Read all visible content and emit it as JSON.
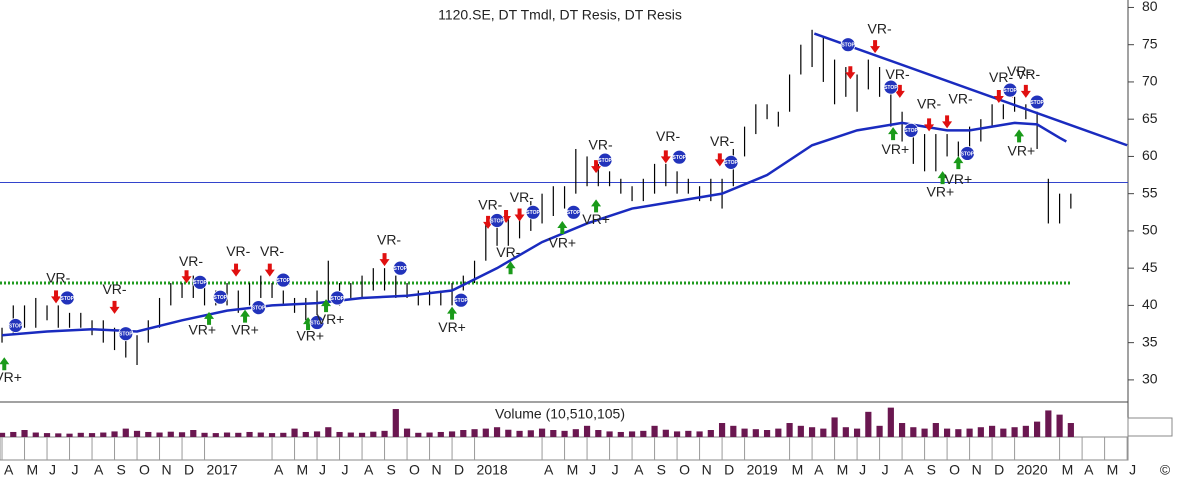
{
  "chart_data": {
    "type": "hl-bar",
    "title": "1120.SE, DT Tmdl, DT Resis, DT Resis",
    "x": [
      0,
      0.5,
      1,
      1.5,
      2,
      2.5,
      3,
      3.5,
      4,
      4.5,
      5,
      5.5,
      6,
      6.5,
      7,
      7.5,
      8,
      8.5,
      9,
      9.5,
      10,
      10.5,
      11,
      11.5,
      12,
      12.5,
      13,
      13.5,
      14,
      14.5,
      15,
      15.5,
      16,
      16.5,
      17,
      17.5,
      18,
      18.5,
      19,
      19.5,
      20,
      20.5,
      21,
      21.5,
      22,
      22.5,
      23,
      23.5,
      24,
      24.5,
      25,
      25.5,
      26,
      26.5,
      27,
      27.5,
      28,
      28.5,
      29,
      29.5,
      30,
      30.5,
      31,
      31.5,
      32,
      32.5,
      33,
      33.5,
      34,
      34.5,
      35,
      35.5,
      36,
      36.5,
      37,
      37.5,
      38,
      38.5,
      39,
      39.5,
      40,
      40.5,
      41,
      41.5,
      42,
      42.5,
      43,
      43.5,
      44,
      44.5,
      45,
      45.5,
      46,
      46.5,
      47,
      47.5
    ],
    "high": [
      37,
      40,
      40,
      41,
      40,
      40,
      39,
      39,
      38,
      38,
      37,
      37,
      36,
      38,
      41,
      43,
      43,
      44,
      43,
      42,
      43,
      42,
      43,
      44,
      43,
      42,
      41,
      41,
      42,
      46,
      43,
      43,
      44,
      45,
      45,
      44,
      43,
      42,
      42,
      42,
      43,
      44,
      46,
      51,
      52,
      52,
      53,
      54,
      55,
      56,
      56,
      61,
      60,
      59,
      58,
      57,
      56,
      57,
      59,
      59,
      58,
      57,
      56,
      57,
      57,
      61,
      64,
      67,
      67,
      66,
      71,
      75,
      77,
      76,
      73,
      72,
      71,
      73,
      72,
      69,
      66,
      64,
      63,
      63,
      63,
      62,
      64,
      65,
      67,
      67,
      68,
      67,
      66,
      57,
      55,
      55
    ],
    "low": [
      35,
      36,
      37,
      37,
      38,
      37,
      37,
      37,
      36,
      35,
      34,
      33,
      32,
      35,
      37,
      40,
      41,
      41,
      40,
      40,
      40,
      39,
      40,
      41,
      41,
      40,
      39,
      38,
      38,
      40,
      40,
      41,
      41,
      42,
      42,
      41,
      41,
      40,
      40,
      40,
      40,
      42,
      43,
      46,
      48,
      48,
      49,
      50,
      51,
      52,
      53,
      55,
      56,
      56,
      56,
      55,
      54,
      54,
      55,
      56,
      55,
      55,
      54,
      54,
      53,
      56,
      60,
      63,
      65,
      64,
      66,
      71,
      72,
      70,
      67,
      68,
      66,
      69,
      68,
      64,
      62,
      59,
      58,
      58,
      60,
      60,
      61,
      62,
      64,
      65,
      66,
      65,
      61,
      51,
      51,
      53
    ],
    "color": "#000000",
    "ma": {
      "x": [
        0,
        2,
        4,
        6,
        8,
        10,
        12,
        14,
        16,
        18,
        20,
        22,
        24,
        26,
        28,
        30,
        32,
        34,
        36,
        38,
        40,
        41,
        42,
        43,
        44,
        45,
        46,
        47,
        47.3
      ],
      "values": [
        36,
        36.5,
        36.8,
        36.5,
        38,
        39.3,
        40,
        40.3,
        41,
        41.3,
        42,
        45,
        48.5,
        51,
        53,
        54,
        55,
        57.5,
        61.5,
        63.5,
        64.5,
        64,
        63.5,
        63.5,
        64,
        64.5,
        64.3,
        62.5,
        62
      ],
      "color": "#1a2bbf"
    },
    "hlines": [
      {
        "y": 56.5,
        "color": "#3344cc",
        "dotted": false
      },
      {
        "y": 43,
        "color": "#1f9a1f",
        "dotted": true,
        "x_end": 47.5
      }
    ],
    "trendline": {
      "x": [
        36.1,
        50
      ],
      "y": [
        76.5,
        61.5
      ],
      "color": "#1a2bbf"
    },
    "annotations": [
      {
        "text": "VR+",
        "x": 0.27,
        "y": 30.2
      },
      {
        "text": "VR-",
        "x": 2.5,
        "y": 43.6
      },
      {
        "text": "VR-",
        "x": 5.0,
        "y": 42
      },
      {
        "text": "VR+",
        "x": 8.9,
        "y": 36.6
      },
      {
        "text": "VR-",
        "x": 8.4,
        "y": 45.8
      },
      {
        "text": "VR-",
        "x": 10.5,
        "y": 47.1
      },
      {
        "text": "VR+",
        "x": 10.8,
        "y": 36.6
      },
      {
        "text": "VR-",
        "x": 12.0,
        "y": 47.1
      },
      {
        "text": "VR+",
        "x": 13.7,
        "y": 35.8
      },
      {
        "text": "VR+",
        "x": 14.6,
        "y": 38
      },
      {
        "text": "VR-",
        "x": 17.2,
        "y": 48.7
      },
      {
        "text": "VR+",
        "x": 20.0,
        "y": 36.9
      },
      {
        "text": "VR-",
        "x": 21.7,
        "y": 53.4
      },
      {
        "text": "VR-",
        "x": 23.1,
        "y": 54.4
      },
      {
        "text": "VR-",
        "x": 22.5,
        "y": 47
      },
      {
        "text": "VR+",
        "x": 24.9,
        "y": 48.3
      },
      {
        "text": "VR+",
        "x": 26.4,
        "y": 51.4
      },
      {
        "text": "VR-",
        "x": 26.6,
        "y": 61.4
      },
      {
        "text": "VR-",
        "x": 29.6,
        "y": 62.6
      },
      {
        "text": "VR-",
        "x": 32.0,
        "y": 61.9
      },
      {
        "text": "VR-",
        "x": 39.0,
        "y": 77
      },
      {
        "text": "VR-",
        "x": 39.8,
        "y": 70.9
      },
      {
        "text": "VR-",
        "x": 41.2,
        "y": 66.9
      },
      {
        "text": "VR-",
        "x": 42.6,
        "y": 67.6
      },
      {
        "text": "VR+",
        "x": 39.7,
        "y": 60.8
      },
      {
        "text": "VR+",
        "x": 41.7,
        "y": 55.1
      },
      {
        "text": "VR+",
        "x": 42.5,
        "y": 56.8
      },
      {
        "text": "VR-",
        "x": 44.4,
        "y": 70.5
      },
      {
        "text": "VR-",
        "x": 45.2,
        "y": 71.3
      },
      {
        "text": "VR-",
        "x": 45.6,
        "y": 70.9
      },
      {
        "text": "VR+",
        "x": 45.3,
        "y": 60.6
      }
    ],
    "arrows_down": [
      {
        "x": 2.4,
        "y": 40.4
      },
      {
        "x": 5.0,
        "y": 39
      },
      {
        "x": 8.2,
        "y": 43.1
      },
      {
        "x": 10.4,
        "y": 44
      },
      {
        "x": 11.9,
        "y": 44
      },
      {
        "x": 17.0,
        "y": 45.4
      },
      {
        "x": 21.6,
        "y": 50.4
      },
      {
        "x": 22.4,
        "y": 51.2
      },
      {
        "x": 23.0,
        "y": 51.4
      },
      {
        "x": 26.4,
        "y": 57.9
      },
      {
        "x": 29.5,
        "y": 59.2
      },
      {
        "x": 31.9,
        "y": 58.8
      },
      {
        "x": 37.7,
        "y": 70.5
      },
      {
        "x": 38.8,
        "y": 74
      },
      {
        "x": 39.9,
        "y": 68
      },
      {
        "x": 41.2,
        "y": 63.5
      },
      {
        "x": 42.0,
        "y": 63.9
      },
      {
        "x": 44.3,
        "y": 67.3
      },
      {
        "x": 44.9,
        "y": 68
      },
      {
        "x": 45.5,
        "y": 68
      }
    ],
    "arrows_up": [
      {
        "x": 0.1,
        "y": 32.9
      },
      {
        "x": 9.2,
        "y": 39
      },
      {
        "x": 10.8,
        "y": 39.3
      },
      {
        "x": 13.6,
        "y": 38.3
      },
      {
        "x": 14.4,
        "y": 40.7
      },
      {
        "x": 20.0,
        "y": 39.7
      },
      {
        "x": 22.6,
        "y": 45.8
      },
      {
        "x": 24.9,
        "y": 51.2
      },
      {
        "x": 26.4,
        "y": 54.1
      },
      {
        "x": 39.6,
        "y": 63.8
      },
      {
        "x": 41.8,
        "y": 57.9
      },
      {
        "x": 42.5,
        "y": 59.9
      },
      {
        "x": 45.2,
        "y": 63.5
      }
    ],
    "stop_text": "STOP",
    "stops": [
      {
        "x": 0.6,
        "y": 37.3
      },
      {
        "x": 2.9,
        "y": 41
      },
      {
        "x": 5.5,
        "y": 36.2
      },
      {
        "x": 8.8,
        "y": 43.1
      },
      {
        "x": 9.7,
        "y": 41.1
      },
      {
        "x": 11.4,
        "y": 39.7
      },
      {
        "x": 12.5,
        "y": 43.4
      },
      {
        "x": 14.0,
        "y": 37.7
      },
      {
        "x": 14.9,
        "y": 41
      },
      {
        "x": 17.7,
        "y": 45
      },
      {
        "x": 20.4,
        "y": 40.7
      },
      {
        "x": 22.0,
        "y": 51.4
      },
      {
        "x": 23.6,
        "y": 52.5
      },
      {
        "x": 25.4,
        "y": 52.5
      },
      {
        "x": 26.8,
        "y": 59.5
      },
      {
        "x": 30.1,
        "y": 59.9
      },
      {
        "x": 32.4,
        "y": 59.2
      },
      {
        "x": 37.6,
        "y": 75
      },
      {
        "x": 39.5,
        "y": 69.3
      },
      {
        "x": 40.4,
        "y": 63.5
      },
      {
        "x": 42.9,
        "y": 60.4
      },
      {
        "x": 44.8,
        "y": 68.9
      },
      {
        "x": 46.0,
        "y": 67.3
      }
    ],
    "ylim": [
      27.3,
      81
    ],
    "yticks": [
      30,
      35,
      40,
      45,
      50,
      55,
      60,
      65,
      70,
      75,
      80
    ],
    "xlim": [
      -0.09,
      50.04
    ],
    "xticks": [
      {
        "value": 0,
        "label": "A"
      },
      {
        "value": 1,
        "label": "M"
      },
      {
        "value": 2,
        "label": "J"
      },
      {
        "value": 3,
        "label": "J"
      },
      {
        "value": 4,
        "label": "A"
      },
      {
        "value": 5,
        "label": "S"
      },
      {
        "value": 6,
        "label": "O"
      },
      {
        "value": 7,
        "label": "N"
      },
      {
        "value": 8,
        "label": "D"
      },
      {
        "value": 9,
        "label": "2017"
      },
      {
        "value": 12,
        "label": "A"
      },
      {
        "value": 13,
        "label": "M"
      },
      {
        "value": 14,
        "label": "J"
      },
      {
        "value": 15,
        "label": "J"
      },
      {
        "value": 16,
        "label": "A"
      },
      {
        "value": 17,
        "label": "S"
      },
      {
        "value": 18,
        "label": "O"
      },
      {
        "value": 19,
        "label": "N"
      },
      {
        "value": 20,
        "label": "D"
      },
      {
        "value": 21,
        "label": "2018"
      },
      {
        "value": 24,
        "label": "A"
      },
      {
        "value": 25,
        "label": "M"
      },
      {
        "value": 26,
        "label": "J"
      },
      {
        "value": 27,
        "label": "J"
      },
      {
        "value": 28,
        "label": "A"
      },
      {
        "value": 29,
        "label": "S"
      },
      {
        "value": 30,
        "label": "O"
      },
      {
        "value": 31,
        "label": "N"
      },
      {
        "value": 32,
        "label": "D"
      },
      {
        "value": 33,
        "label": "2019"
      },
      {
        "value": 35,
        "label": "M"
      },
      {
        "value": 36,
        "label": "A"
      },
      {
        "value": 37,
        "label": "M"
      },
      {
        "value": 38,
        "label": "J"
      },
      {
        "value": 39,
        "label": "J"
      },
      {
        "value": 40,
        "label": "A"
      },
      {
        "value": 41,
        "label": "S"
      },
      {
        "value": 42,
        "label": "O"
      },
      {
        "value": 43,
        "label": "N"
      },
      {
        "value": 44,
        "label": "D"
      },
      {
        "value": 45,
        "label": "2020"
      },
      {
        "value": 47,
        "label": "M"
      },
      {
        "value": 48,
        "label": "A"
      },
      {
        "value": 49,
        "label": "M"
      },
      {
        "value": 50,
        "label": "J"
      }
    ],
    "volume": {
      "title": "Volume (10,510,105)",
      "color": "#6a1750",
      "ylim": [
        0,
        11.8
      ],
      "values": [
        1.5,
        1.8,
        2.5,
        1.6,
        1.4,
        1.3,
        1.2,
        1.5,
        1.4,
        1.6,
        2.0,
        3.0,
        2.2,
        1.8,
        1.6,
        1.9,
        1.7,
        2.5,
        1.5,
        1.4,
        1.6,
        1.5,
        1.8,
        1.6,
        1.4,
        1.5,
        3.0,
        1.8,
        2.0,
        3.5,
        1.8,
        1.6,
        1.5,
        1.9,
        2.2,
        10.0,
        3.0,
        1.5,
        1.6,
        1.8,
        2.0,
        2.5,
        2.8,
        3.0,
        3.5,
        2.6,
        2.2,
        2.4,
        3.0,
        2.5,
        2.2,
        2.8,
        4.0,
        2.5,
        2.0,
        1.8,
        2.0,
        2.2,
        4.0,
        2.6,
        2.0,
        2.2,
        2.0,
        2.5,
        5.0,
        4.0,
        3.0,
        2.8,
        2.5,
        3.0,
        5.0,
        4.0,
        3.5,
        3.0,
        7.0,
        3.5,
        3.0,
        9.0,
        4.0,
        10.5,
        5.0,
        3.5,
        3.0,
        5.0,
        3.0,
        2.8,
        3.0,
        3.5,
        4.0,
        3.0,
        3.5,
        4.0,
        5.5,
        9.5,
        8.0,
        5.0
      ]
    },
    "footer": "©"
  }
}
